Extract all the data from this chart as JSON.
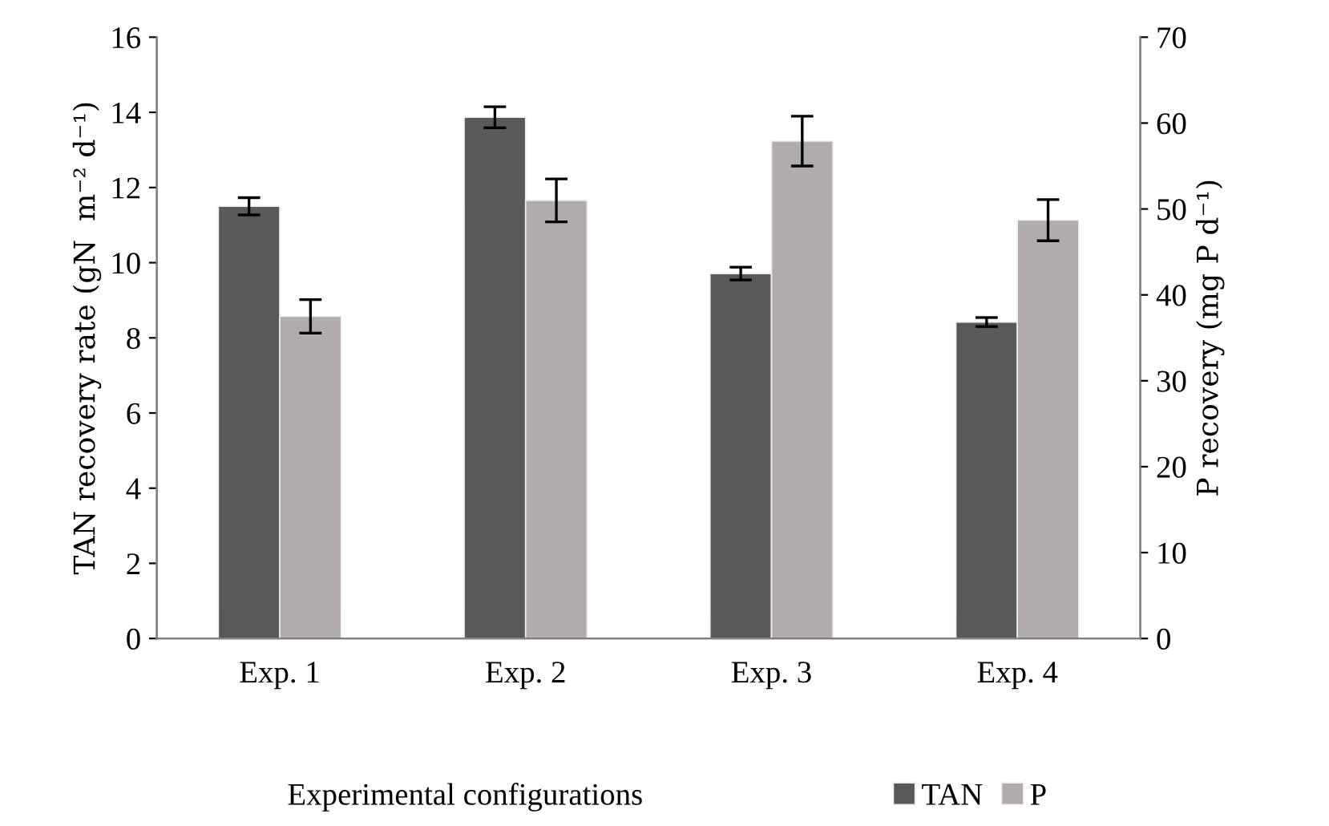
{
  "chart_data": {
    "type": "bar",
    "xlabel": "Experimental configurations",
    "ylabel": "TAN recovery rate (gN  m⁻² d⁻¹)",
    "y2label": "P recovery (mg P d⁻¹)",
    "categories": [
      "Exp. 1",
      "Exp. 2",
      "Exp. 3",
      "Exp. 4"
    ],
    "series": [
      {
        "name": "TAN",
        "color": "#595959",
        "values": [
          11.5,
          13.87,
          9.71,
          8.42
        ],
        "errors": [
          0.23,
          0.28,
          0.17,
          0.12
        ]
      },
      {
        "name": "P",
        "color": "#b0acab",
        "axis": "y2",
        "values": [
          37.5,
          51.0,
          57.9,
          48.7
        ],
        "errors": [
          1.95,
          2.5,
          2.9,
          2.4
        ]
      }
    ],
    "ylim": [
      0,
      16
    ],
    "yticks": [
      0,
      2,
      4,
      6,
      8,
      10,
      12,
      14,
      16
    ],
    "y2lim": [
      0,
      70
    ],
    "y2ticks": [
      0,
      10,
      20,
      30,
      40,
      50,
      60,
      70
    ],
    "grid": false,
    "legend": "bottom"
  }
}
